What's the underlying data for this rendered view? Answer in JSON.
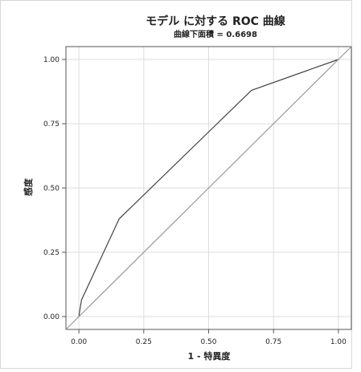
{
  "chart_data": {
    "type": "line",
    "title": "モデル に対する ROC 曲線",
    "subtitle": "曲線下面積 = 0.6698",
    "xlabel": "1 - 特異度",
    "ylabel": "感度",
    "xlim": [
      -0.05,
      1.05
    ],
    "ylim": [
      -0.05,
      1.05
    ],
    "xticks": [
      0,
      0.25,
      0.5,
      0.75,
      1
    ],
    "yticks": [
      0,
      0.25,
      0.5,
      0.75,
      1
    ],
    "xtick_labels": [
      "0.00",
      "0.25",
      "0.50",
      "0.75",
      "1.00"
    ],
    "ytick_labels": [
      "0.00",
      "0.25",
      "0.50",
      "0.75",
      "1.00"
    ],
    "grid": true,
    "series": [
      {
        "x": [
          0,
          0.005,
          0.01,
          0.155,
          0.665,
          1
        ],
        "y": [
          0,
          0.035,
          0.065,
          0.38,
          0.88,
          1
        ],
        "color": "#444444"
      },
      {
        "x": [
          -0.05,
          1.05
        ],
        "y": [
          -0.05,
          1.05
        ],
        "color": "#999999"
      }
    ]
  }
}
